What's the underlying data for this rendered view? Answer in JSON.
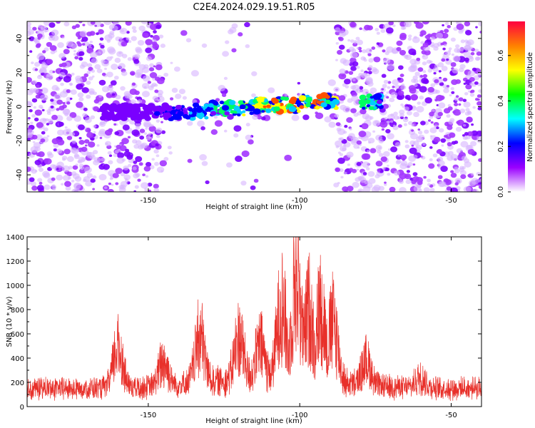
{
  "title": "C2E4.2024.029.19.51.R05",
  "chart_data": [
    {
      "type": "heatmap",
      "xlabel": "Height of straight line (km)",
      "ylabel": "Frequency (Hz)",
      "xlim": [
        -190,
        -40
      ],
      "ylim": [
        -50,
        50
      ],
      "x_ticks": [
        -150,
        -100,
        -50
      ],
      "y_ticks": [
        -40,
        -20,
        0,
        20,
        40
      ],
      "colorbar": {
        "label": "Normalized spectral amplitude",
        "range": [
          0.0,
          0.75
        ],
        "ticks": [
          0.0,
          0.2,
          0.4,
          0.6
        ],
        "colors": [
          "#ffffff",
          "#9a00ff",
          "#0000ff",
          "#00ffff",
          "#00ff00",
          "#ffff00",
          "#ff8000",
          "#ff0040"
        ]
      },
      "signal_band": {
        "freq_center": 0,
        "x_range": [
          -165,
          -85
        ],
        "peak_x": -100
      },
      "noise_gap_x": [
        -145,
        -88
      ]
    },
    {
      "type": "line",
      "xlabel": "Height of straight line (km)",
      "ylabel": "SNR (10 * v/v)",
      "xlim": [
        -190,
        -40
      ],
      "ylim": [
        0,
        1400
      ],
      "x_ticks": [
        -150,
        -100,
        -50
      ],
      "y_ticks": [
        0,
        200,
        400,
        600,
        800,
        1000,
        1200,
        1400
      ],
      "color": "#e8302a",
      "baseline": 170,
      "peaks": [
        {
          "x": -160,
          "y": 660
        },
        {
          "x": -145,
          "y": 460
        },
        {
          "x": -133,
          "y": 720
        },
        {
          "x": -120,
          "y": 660
        },
        {
          "x": -113,
          "y": 560
        },
        {
          "x": -106,
          "y": 1050
        },
        {
          "x": -101,
          "y": 1400
        },
        {
          "x": -97,
          "y": 1000
        },
        {
          "x": -93,
          "y": 1050
        },
        {
          "x": -89,
          "y": 880
        },
        {
          "x": -78,
          "y": 450
        },
        {
          "x": -60,
          "y": 300
        }
      ]
    }
  ]
}
